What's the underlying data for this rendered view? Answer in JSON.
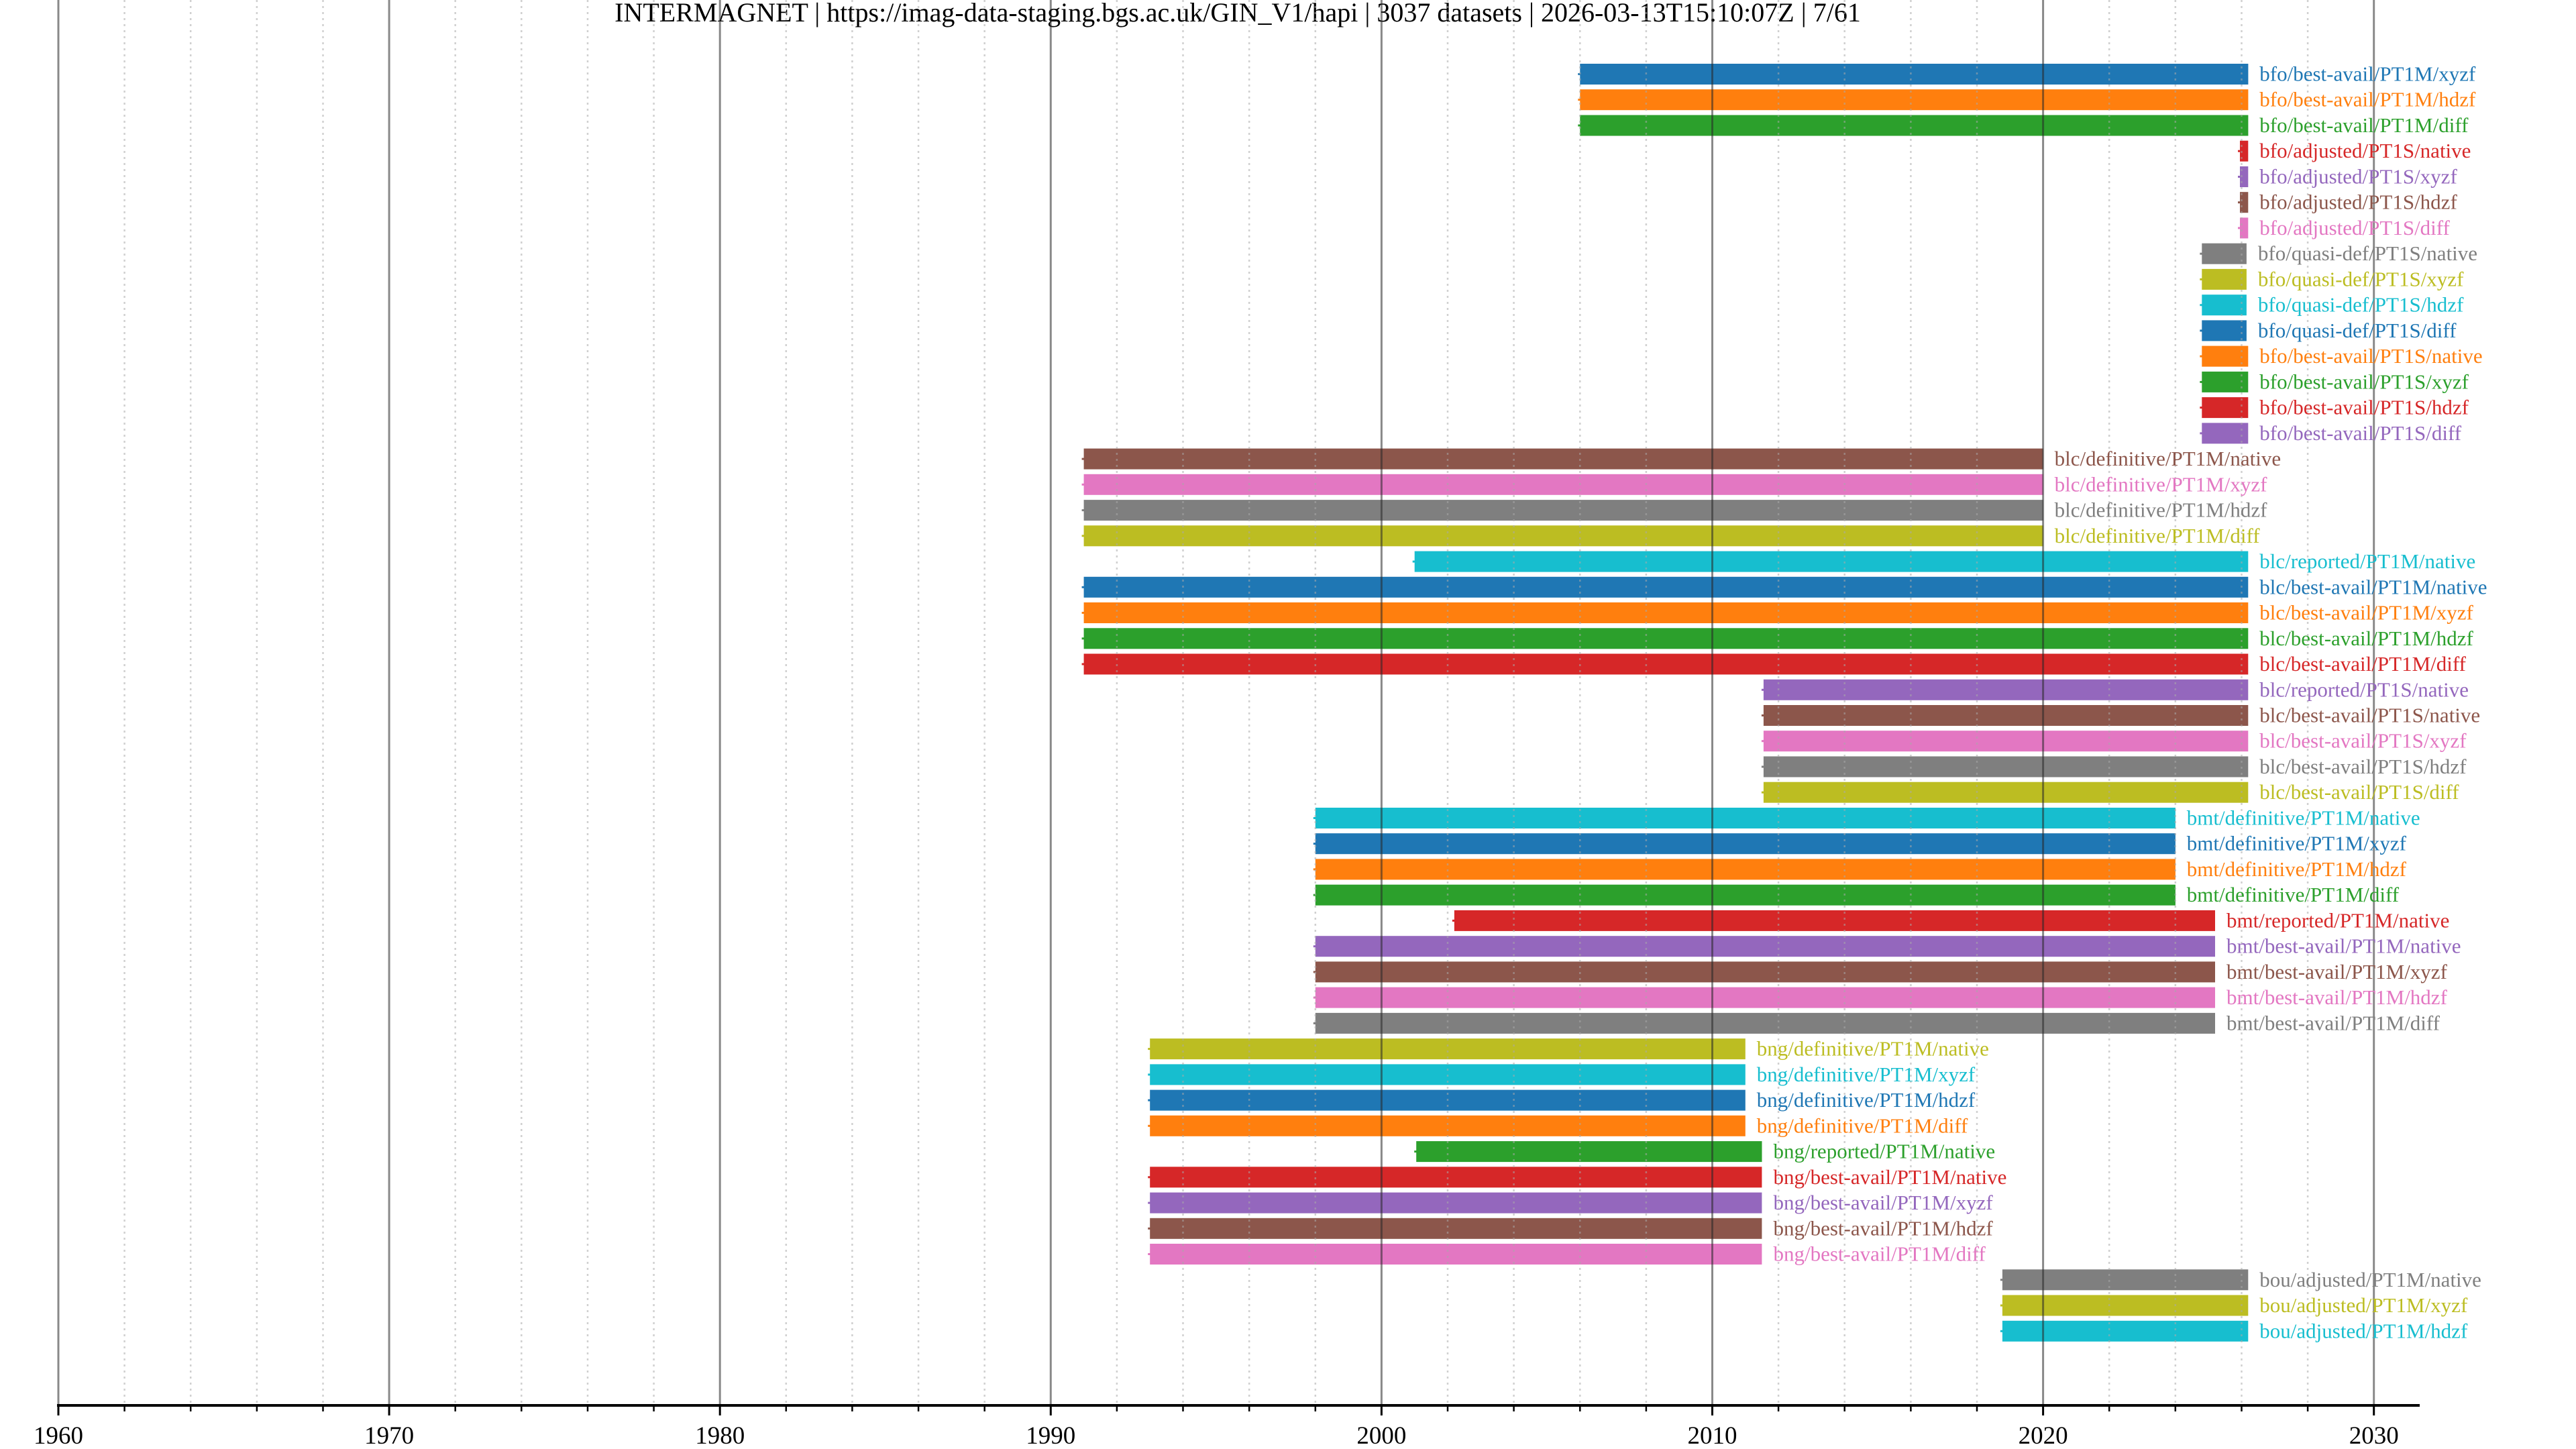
{
  "chart_data": {
    "type": "timeline",
    "title": "INTERMAGNET | https://imag-data-staging.bgs.ac.uk/GIN_V1/hapi | 3037 datasets | 2026-03-13T15:10:07Z | 7/61",
    "xlabel": "",
    "ylabel": "",
    "xlim": [
      1960,
      2031.4
    ],
    "x_ticks": [
      "1960",
      "1970",
      "1980",
      "1990",
      "2000",
      "2010",
      "2020",
      "2030"
    ],
    "x_tick_values": [
      1960,
      1970,
      1980,
      1990,
      2000,
      2010,
      2020,
      2030
    ],
    "minor_tick_step_years": 2,
    "grid": true,
    "palette": [
      "#1f77b4",
      "#ff7f0e",
      "#2ca02c",
      "#d62728",
      "#9467bd",
      "#8c564b",
      "#e377c2",
      "#7f7f7f",
      "#bcbd22",
      "#17becf"
    ],
    "series": [
      {
        "name": "bfo/best-avail/PT1M/xyzf",
        "start": 2006.0,
        "end": 2026.2
      },
      {
        "name": "bfo/best-avail/PT1M/hdzf",
        "start": 2006.0,
        "end": 2026.2
      },
      {
        "name": "bfo/best-avail/PT1M/diff",
        "start": 2006.0,
        "end": 2026.2
      },
      {
        "name": "bfo/adjusted/PT1S/native",
        "start": 2025.95,
        "end": 2026.2
      },
      {
        "name": "bfo/adjusted/PT1S/xyzf",
        "start": 2025.95,
        "end": 2026.2
      },
      {
        "name": "bfo/adjusted/PT1S/hdzf",
        "start": 2025.95,
        "end": 2026.2
      },
      {
        "name": "bfo/adjusted/PT1S/diff",
        "start": 2025.95,
        "end": 2026.2
      },
      {
        "name": "bfo/quasi-def/PT1S/native",
        "start": 2024.8,
        "end": 2026.15
      },
      {
        "name": "bfo/quasi-def/PT1S/xyzf",
        "start": 2024.8,
        "end": 2026.15
      },
      {
        "name": "bfo/quasi-def/PT1S/hdzf",
        "start": 2024.8,
        "end": 2026.15
      },
      {
        "name": "bfo/quasi-def/PT1S/diff",
        "start": 2024.8,
        "end": 2026.15
      },
      {
        "name": "bfo/best-avail/PT1S/native",
        "start": 2024.8,
        "end": 2026.2
      },
      {
        "name": "bfo/best-avail/PT1S/xyzf",
        "start": 2024.8,
        "end": 2026.2
      },
      {
        "name": "bfo/best-avail/PT1S/hdzf",
        "start": 2024.8,
        "end": 2026.2
      },
      {
        "name": "bfo/best-avail/PT1S/diff",
        "start": 2024.8,
        "end": 2026.2
      },
      {
        "name": "blc/definitive/PT1M/native",
        "start": 1991.0,
        "end": 2020.0
      },
      {
        "name": "blc/definitive/PT1M/xyzf",
        "start": 1991.0,
        "end": 2020.0
      },
      {
        "name": "blc/definitive/PT1M/hdzf",
        "start": 1991.0,
        "end": 2020.0
      },
      {
        "name": "blc/definitive/PT1M/diff",
        "start": 1991.0,
        "end": 2020.0
      },
      {
        "name": "blc/reported/PT1M/native",
        "start": 2001.0,
        "end": 2026.2
      },
      {
        "name": "blc/best-avail/PT1M/native",
        "start": 1991.0,
        "end": 2026.2
      },
      {
        "name": "blc/best-avail/PT1M/xyzf",
        "start": 1991.0,
        "end": 2026.2
      },
      {
        "name": "blc/best-avail/PT1M/hdzf",
        "start": 1991.0,
        "end": 2026.2
      },
      {
        "name": "blc/best-avail/PT1M/diff",
        "start": 1991.0,
        "end": 2026.2
      },
      {
        "name": "blc/reported/PT1S/native",
        "start": 2011.55,
        "end": 2026.2
      },
      {
        "name": "blc/best-avail/PT1S/native",
        "start": 2011.55,
        "end": 2026.2
      },
      {
        "name": "blc/best-avail/PT1S/xyzf",
        "start": 2011.55,
        "end": 2026.2
      },
      {
        "name": "blc/best-avail/PT1S/hdzf",
        "start": 2011.55,
        "end": 2026.2
      },
      {
        "name": "blc/best-avail/PT1S/diff",
        "start": 2011.55,
        "end": 2026.2
      },
      {
        "name": "bmt/definitive/PT1M/native",
        "start": 1998.0,
        "end": 2024.0
      },
      {
        "name": "bmt/definitive/PT1M/xyzf",
        "start": 1998.0,
        "end": 2024.0
      },
      {
        "name": "bmt/definitive/PT1M/hdzf",
        "start": 1998.0,
        "end": 2024.0
      },
      {
        "name": "bmt/definitive/PT1M/diff",
        "start": 1998.0,
        "end": 2024.0
      },
      {
        "name": "bmt/reported/PT1M/native",
        "start": 2002.2,
        "end": 2025.2
      },
      {
        "name": "bmt/best-avail/PT1M/native",
        "start": 1998.0,
        "end": 2025.2
      },
      {
        "name": "bmt/best-avail/PT1M/xyzf",
        "start": 1998.0,
        "end": 2025.2
      },
      {
        "name": "bmt/best-avail/PT1M/hdzf",
        "start": 1998.0,
        "end": 2025.2
      },
      {
        "name": "bmt/best-avail/PT1M/diff",
        "start": 1998.0,
        "end": 2025.2
      },
      {
        "name": "bng/definitive/PT1M/native",
        "start": 1993.0,
        "end": 2011.0
      },
      {
        "name": "bng/definitive/PT1M/xyzf",
        "start": 1993.0,
        "end": 2011.0
      },
      {
        "name": "bng/definitive/PT1M/hdzf",
        "start": 1993.0,
        "end": 2011.0
      },
      {
        "name": "bng/definitive/PT1M/diff",
        "start": 1993.0,
        "end": 2011.0
      },
      {
        "name": "bng/reported/PT1M/native",
        "start": 2001.05,
        "end": 2011.5
      },
      {
        "name": "bng/best-avail/PT1M/native",
        "start": 1993.0,
        "end": 2011.5
      },
      {
        "name": "bng/best-avail/PT1M/xyzf",
        "start": 1993.0,
        "end": 2011.5
      },
      {
        "name": "bng/best-avail/PT1M/hdzf",
        "start": 1993.0,
        "end": 2011.5
      },
      {
        "name": "bng/best-avail/PT1M/diff",
        "start": 1993.0,
        "end": 2011.5
      },
      {
        "name": "bou/adjusted/PT1M/native",
        "start": 2018.77,
        "end": 2026.2
      },
      {
        "name": "bou/adjusted/PT1M/xyzf",
        "start": 2018.77,
        "end": 2026.2
      },
      {
        "name": "bou/adjusted/PT1M/hdzf",
        "start": 2018.77,
        "end": 2026.2
      }
    ]
  }
}
